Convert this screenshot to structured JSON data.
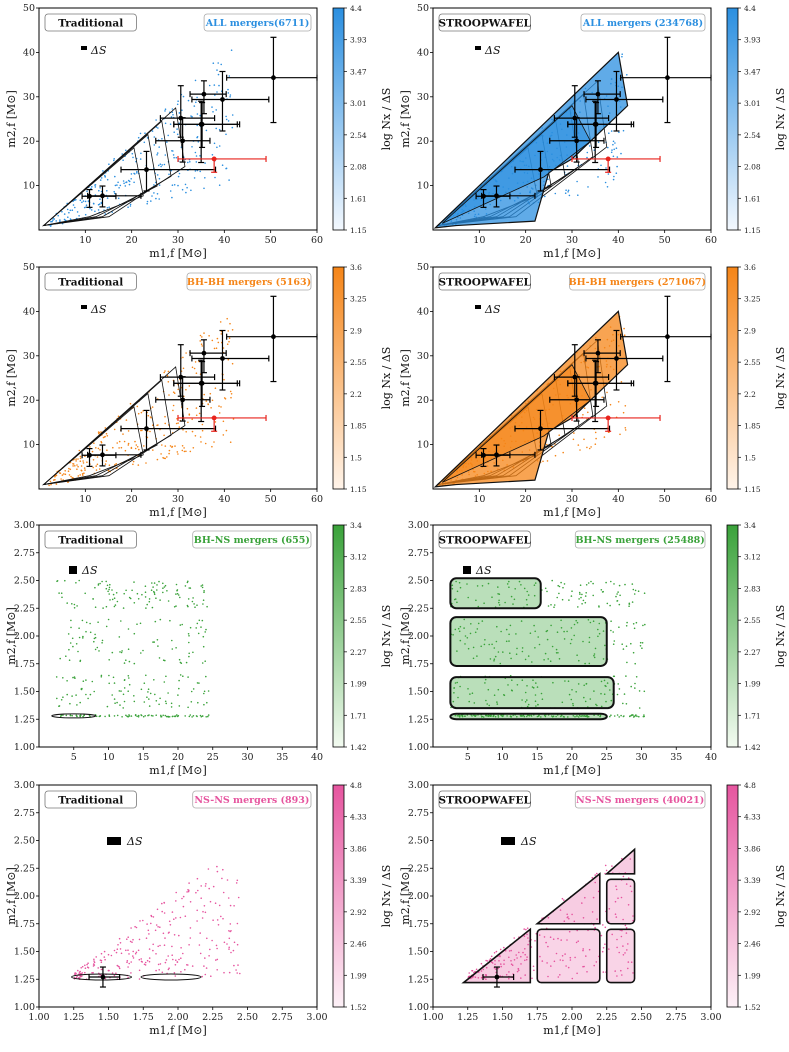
{
  "figure": {
    "width": 789,
    "height": 1052,
    "xlabel": "m1,f [M⊙]",
    "ylabel": "m2,f [M⊙]",
    "cblabel": "log Nx / ΔS",
    "delta_s_label": "ΔS"
  },
  "chart_data": [
    {
      "id": "all-trad",
      "type": "scatter",
      "method": "Traditional",
      "population": "ALL mergers(6711)",
      "color": "#2b8fe0",
      "xlim": [
        0,
        60
      ],
      "ylim": [
        0,
        50
      ],
      "xticks": [
        "10",
        "20",
        "30",
        "40",
        "50",
        "60"
      ],
      "yticks": [
        "10",
        "20",
        "30",
        "40",
        "50"
      ],
      "colorbar_ticks": [
        "1.15",
        "1.61",
        "2.08",
        "2.54",
        "3.01",
        "3.47",
        "3.93",
        "4.4"
      ],
      "density": "low",
      "show_observations": true
    },
    {
      "id": "all-sw",
      "type": "scatter",
      "method": "STROOPWAFEL",
      "population": "ALL mergers (234768)",
      "color": "#2b8fe0",
      "xlim": [
        0,
        60
      ],
      "ylim": [
        0,
        50
      ],
      "xticks": [
        "10",
        "20",
        "30",
        "40",
        "50",
        "60"
      ],
      "yticks": [
        "10",
        "20",
        "30",
        "40",
        "50"
      ],
      "colorbar_ticks": [
        "1.15",
        "1.61",
        "2.08",
        "2.54",
        "3.01",
        "3.47",
        "3.93",
        "4.4"
      ],
      "density": "high",
      "show_observations": true
    },
    {
      "id": "bbh-trad",
      "type": "scatter",
      "method": "Traditional",
      "population": "BH-BH mergers (5163)",
      "color": "#f58518",
      "xlim": [
        0,
        60
      ],
      "ylim": [
        0,
        50
      ],
      "xticks": [
        "10",
        "20",
        "30",
        "40",
        "50",
        "60"
      ],
      "yticks": [
        "10",
        "20",
        "30",
        "40",
        "50"
      ],
      "colorbar_ticks": [
        "1.15",
        "1.5",
        "1.85",
        "2.2",
        "2.55",
        "2.9",
        "3.25",
        "3.6"
      ],
      "density": "low",
      "show_observations": true
    },
    {
      "id": "bbh-sw",
      "type": "scatter",
      "method": "STROOPWAFEL",
      "population": "BH-BH mergers (271067)",
      "color": "#f58518",
      "xlim": [
        0,
        60
      ],
      "ylim": [
        0,
        50
      ],
      "xticks": [
        "10",
        "20",
        "30",
        "40",
        "50",
        "60"
      ],
      "yticks": [
        "10",
        "20",
        "30",
        "40",
        "50"
      ],
      "colorbar_ticks": [
        "1.15",
        "1.5",
        "1.85",
        "2.2",
        "2.55",
        "2.9",
        "3.25",
        "3.6"
      ],
      "density": "high",
      "show_observations": true
    },
    {
      "id": "bhns-trad",
      "type": "scatter",
      "method": "Traditional",
      "population": "BH-NS mergers (655)",
      "color": "#3aa23a",
      "xlim": [
        0,
        40
      ],
      "ylim": [
        1.0,
        3.0
      ],
      "xticks": [
        "5",
        "10",
        "15",
        "20",
        "25",
        "30",
        "35",
        "40"
      ],
      "yticks": [
        "1.00",
        "1.25",
        "1.50",
        "1.75",
        "2.00",
        "2.25",
        "2.50",
        "2.75",
        "3.00"
      ],
      "colorbar_ticks": [
        "1.42",
        "1.71",
        "1.99",
        "2.27",
        "2.55",
        "2.83",
        "3.12",
        "3.4"
      ],
      "density": "low",
      "show_observations": false
    },
    {
      "id": "bhns-sw",
      "type": "scatter",
      "method": "STROOPWAFEL",
      "population": "BH-NS mergers (25488)",
      "color": "#3aa23a",
      "xlim": [
        0,
        40
      ],
      "ylim": [
        1.0,
        3.0
      ],
      "xticks": [
        "5",
        "10",
        "15",
        "20",
        "25",
        "30",
        "35",
        "40"
      ],
      "yticks": [
        "1.00",
        "1.25",
        "1.50",
        "1.75",
        "2.00",
        "2.25",
        "2.50",
        "2.75",
        "3.00"
      ],
      "colorbar_ticks": [
        "1.42",
        "1.71",
        "1.99",
        "2.27",
        "2.55",
        "2.83",
        "3.12",
        "3.4"
      ],
      "density": "high",
      "show_observations": false
    },
    {
      "id": "nsns-trad",
      "type": "scatter",
      "method": "Traditional",
      "population": "NS-NS mergers (893)",
      "color": "#e6559f",
      "xlim": [
        1.0,
        3.0
      ],
      "ylim": [
        1.0,
        3.0
      ],
      "xticks": [
        "1.00",
        "1.25",
        "1.50",
        "1.75",
        "2.00",
        "2.25",
        "2.50",
        "2.75",
        "3.00"
      ],
      "yticks": [
        "1.00",
        "1.25",
        "1.50",
        "1.75",
        "2.00",
        "2.25",
        "2.50",
        "2.75",
        "3.00"
      ],
      "colorbar_ticks": [
        "1.52",
        "1.99",
        "2.46",
        "2.92",
        "3.39",
        "3.86",
        "4.33",
        "4.8"
      ],
      "density": "low",
      "show_observations": true
    },
    {
      "id": "nsns-sw",
      "type": "scatter",
      "method": "STROOPWAFEL",
      "population": "NS-NS mergers (40021)",
      "color": "#e6559f",
      "xlim": [
        1.0,
        3.0
      ],
      "ylim": [
        1.0,
        3.0
      ],
      "xticks": [
        "1.00",
        "1.25",
        "1.50",
        "1.75",
        "2.00",
        "2.25",
        "2.50",
        "2.75",
        "3.00"
      ],
      "yticks": [
        "1.00",
        "1.25",
        "1.50",
        "1.75",
        "2.00",
        "2.25",
        "2.50",
        "2.75",
        "3.00"
      ],
      "colorbar_ticks": [
        "1.52",
        "1.99",
        "2.46",
        "2.92",
        "3.39",
        "3.86",
        "4.33",
        "4.8"
      ],
      "density": "high",
      "show_observations": true
    }
  ],
  "observations": {
    "bbh": [
      {
        "x": 10.9,
        "y": 7.6,
        "xl": 1.6,
        "xh": 5.7,
        "yl": 2.5,
        "yh": 1.5,
        "color": "#000000"
      },
      {
        "x": 13.7,
        "y": 7.7,
        "xl": 3.2,
        "xh": 8.3,
        "yl": 2.5,
        "yh": 2.2,
        "color": "#000000"
      },
      {
        "x": 23.2,
        "y": 13.6,
        "xl": 5.5,
        "xh": 14.9,
        "yl": 4.8,
        "yh": 4.1,
        "color": "#000000"
      },
      {
        "x": 30.6,
        "y": 25.2,
        "xl": 4.4,
        "xh": 7.3,
        "yl": 4.3,
        "yh": 7.3,
        "color": "#000000"
      },
      {
        "x": 31.0,
        "y": 20.1,
        "xl": 5.8,
        "xh": 5.9,
        "yl": 4.8,
        "yh": 5.2,
        "color": "#000000"
      },
      {
        "x": 35.2,
        "y": 23.8,
        "xl": 6.1,
        "xh": 7.6,
        "yl": 5.2,
        "yh": 4.9,
        "color": "#000000"
      },
      {
        "x": 35.6,
        "y": 30.6,
        "xl": 3.0,
        "xh": 4.8,
        "yl": 4.4,
        "yh": 3.0,
        "color": "#000000"
      },
      {
        "x": 35.0,
        "y": 23.8,
        "xl": 5.9,
        "xh": 8.3,
        "yl": 8.6,
        "yh": 5.2,
        "color": "#000000"
      },
      {
        "x": 39.6,
        "y": 29.4,
        "xl": 6.6,
        "xh": 10.0,
        "yl": 7.1,
        "yh": 6.3,
        "color": "#000000"
      },
      {
        "x": 50.6,
        "y": 34.3,
        "xl": 10.1,
        "xh": 16.6,
        "yl": 10.1,
        "yh": 9.1,
        "color": "#000000"
      },
      {
        "x": 37.8,
        "y": 16.0,
        "xl": 7.8,
        "xh": 11.2,
        "yl": 3.0,
        "yh": 0.0,
        "color": "#e8231c"
      }
    ],
    "bns": [
      {
        "x": 1.46,
        "y": 1.27,
        "xl": 0.1,
        "xh": 0.12,
        "yl": 0.09,
        "yh": 0.09,
        "color": "#000000"
      }
    ]
  }
}
